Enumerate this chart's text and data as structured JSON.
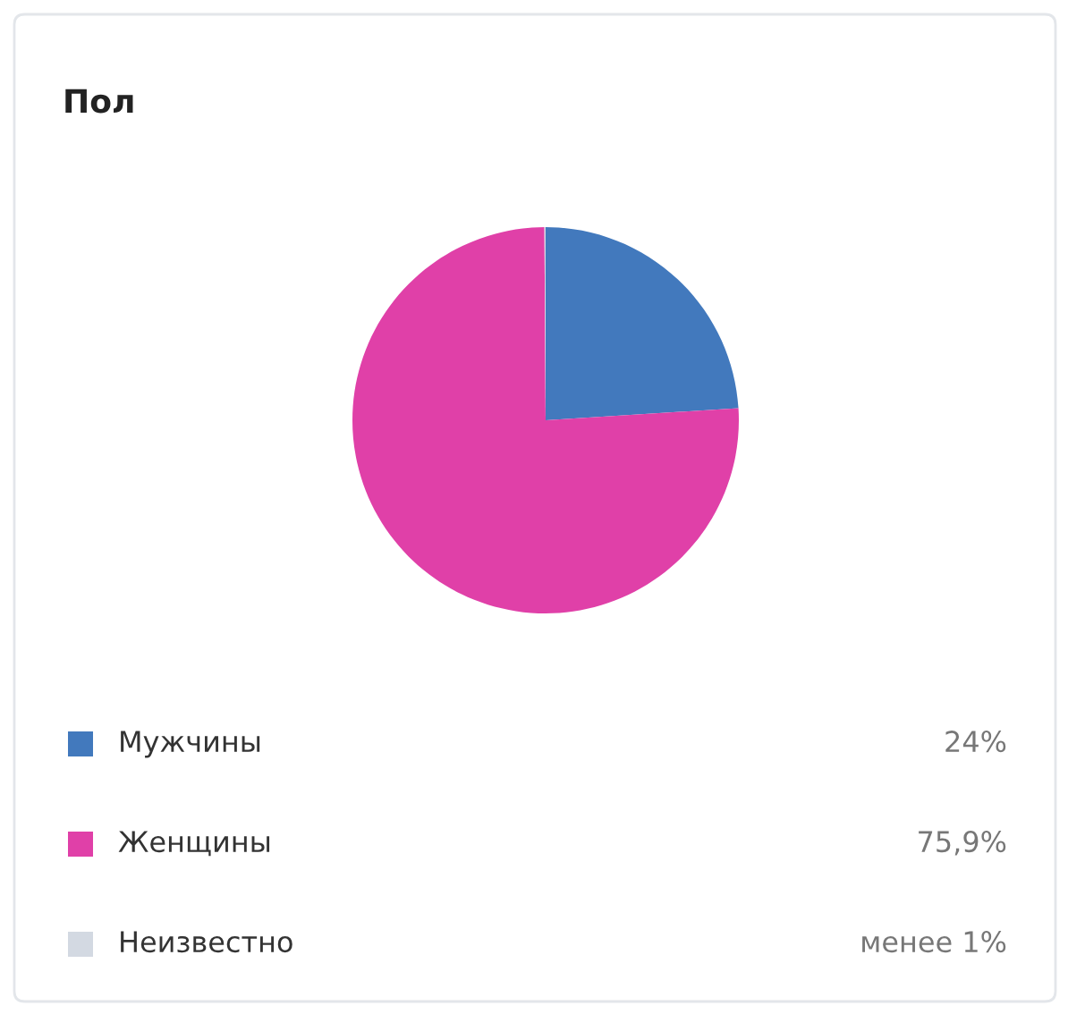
{
  "chart_data": {
    "type": "pie",
    "title": "Пол",
    "categories": [
      "Мужчины",
      "Женщины",
      "Неизвестно"
    ],
    "values": [
      24,
      75.9,
      0.1
    ],
    "value_labels": [
      "24%",
      "75,9%",
      "менее 1%"
    ],
    "colors": [
      "#4279bd",
      "#e040a8",
      "#d3d9e2"
    ],
    "legend": "bottom"
  }
}
